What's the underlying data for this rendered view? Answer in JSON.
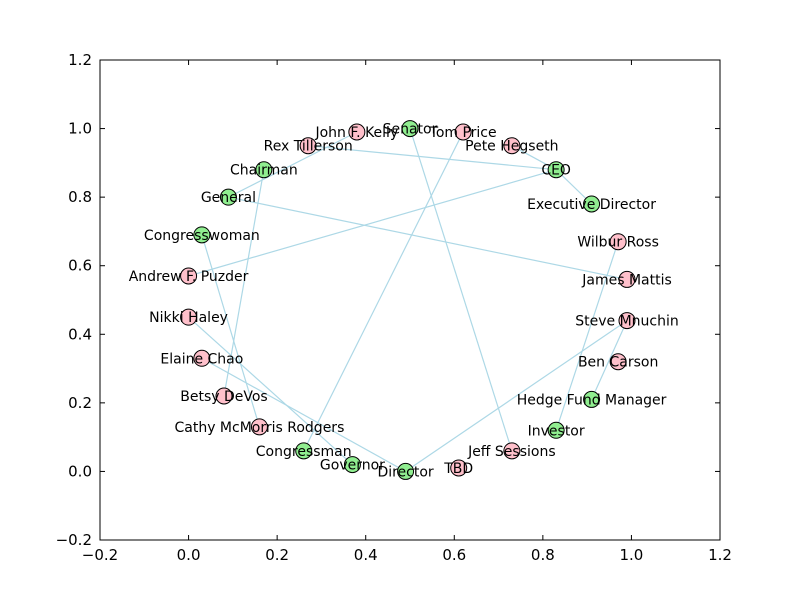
{
  "chart_data": {
    "type": "network",
    "title": "",
    "xlabel": "",
    "ylabel": "",
    "xlim": [
      -0.2,
      1.2
    ],
    "ylim": [
      -0.2,
      1.2
    ],
    "grid": false,
    "x_ticks": [
      "−0.2",
      "0.0",
      "0.2",
      "0.4",
      "0.6",
      "0.8",
      "1.0",
      "1.2"
    ],
    "y_ticks": [
      "−0.2",
      "0.0",
      "0.2",
      "0.4",
      "0.6",
      "0.8",
      "1.0",
      "1.2"
    ],
    "colors": {
      "person": "#ffc0cb",
      "role": "#90ee90",
      "edge": "#add8e6",
      "node_stroke": "#000000"
    },
    "nodes": [
      {
        "id": "senator",
        "label": "Senator",
        "kind": "role",
        "x": 0.5,
        "y": 1.0
      },
      {
        "id": "price",
        "label": "Tom Price",
        "kind": "person",
        "x": 0.62,
        "y": 0.99
      },
      {
        "id": "kelly",
        "label": "John F. Kelly",
        "kind": "person",
        "x": 0.38,
        "y": 0.99
      },
      {
        "id": "hegseth",
        "label": "Pete Hegseth",
        "kind": "person",
        "x": 0.73,
        "y": 0.95
      },
      {
        "id": "tillerson",
        "label": "Rex Tillerson",
        "kind": "person",
        "x": 0.27,
        "y": 0.95
      },
      {
        "id": "ceo",
        "label": "CEO",
        "kind": "role",
        "x": 0.83,
        "y": 0.88
      },
      {
        "id": "chairman",
        "label": "Chairman",
        "kind": "role",
        "x": 0.17,
        "y": 0.88
      },
      {
        "id": "execdir",
        "label": "Executive Director",
        "kind": "role",
        "x": 0.91,
        "y": 0.78
      },
      {
        "id": "general",
        "label": "General",
        "kind": "role",
        "x": 0.09,
        "y": 0.8
      },
      {
        "id": "congresswoman",
        "label": "Congresswoman",
        "kind": "role",
        "x": 0.03,
        "y": 0.69
      },
      {
        "id": "ross",
        "label": "Wilbur Ross",
        "kind": "person",
        "x": 0.97,
        "y": 0.67
      },
      {
        "id": "puzder",
        "label": "Andrew F. Puzder",
        "kind": "person",
        "x": 0.0,
        "y": 0.57
      },
      {
        "id": "mattis",
        "label": "James Mattis",
        "kind": "person",
        "x": 0.99,
        "y": 0.56
      },
      {
        "id": "haley",
        "label": "Nikki Haley",
        "kind": "person",
        "x": 0.0,
        "y": 0.45
      },
      {
        "id": "mnuchin",
        "label": "Steve Mnuchin",
        "kind": "person",
        "x": 0.99,
        "y": 0.44
      },
      {
        "id": "chao",
        "label": "Elaine Chao",
        "kind": "person",
        "x": 0.03,
        "y": 0.33
      },
      {
        "id": "carson",
        "label": "Ben Carson",
        "kind": "person",
        "x": 0.97,
        "y": 0.32
      },
      {
        "id": "devos",
        "label": "Betsy DeVos",
        "kind": "person",
        "x": 0.08,
        "y": 0.22
      },
      {
        "id": "hedgefund",
        "label": "Hedge Fund Manager",
        "kind": "role",
        "x": 0.91,
        "y": 0.21
      },
      {
        "id": "mcmorris",
        "label": "Cathy McMorris Rodgers",
        "kind": "person",
        "x": 0.16,
        "y": 0.13
      },
      {
        "id": "investor",
        "label": "Investor",
        "kind": "role",
        "x": 0.83,
        "y": 0.12
      },
      {
        "id": "congressman",
        "label": "Congressman",
        "kind": "role",
        "x": 0.26,
        "y": 0.06
      },
      {
        "id": "sessions",
        "label": "Jeff Sessions",
        "kind": "person",
        "x": 0.73,
        "y": 0.06
      },
      {
        "id": "governor",
        "label": "Governor",
        "kind": "role",
        "x": 0.37,
        "y": 0.02
      },
      {
        "id": "tbd",
        "label": "TBD",
        "kind": "person",
        "x": 0.61,
        "y": 0.01
      },
      {
        "id": "director",
        "label": "Director",
        "kind": "role",
        "x": 0.49,
        "y": 0.0
      }
    ],
    "edges": [
      [
        "price",
        "congressman"
      ],
      [
        "senator",
        "sessions"
      ],
      [
        "tillerson",
        "ceo"
      ],
      [
        "hegseth",
        "ceo"
      ],
      [
        "ceo",
        "execdir"
      ],
      [
        "ceo",
        "puzder"
      ],
      [
        "chairman",
        "devos"
      ],
      [
        "general",
        "mattis"
      ],
      [
        "general",
        "kelly"
      ],
      [
        "congresswoman",
        "mcmorris"
      ],
      [
        "haley",
        "governor"
      ],
      [
        "chao",
        "director"
      ],
      [
        "ross",
        "investor"
      ],
      [
        "mnuchin",
        "director"
      ],
      [
        "mnuchin",
        "hedgefund"
      ]
    ]
  }
}
